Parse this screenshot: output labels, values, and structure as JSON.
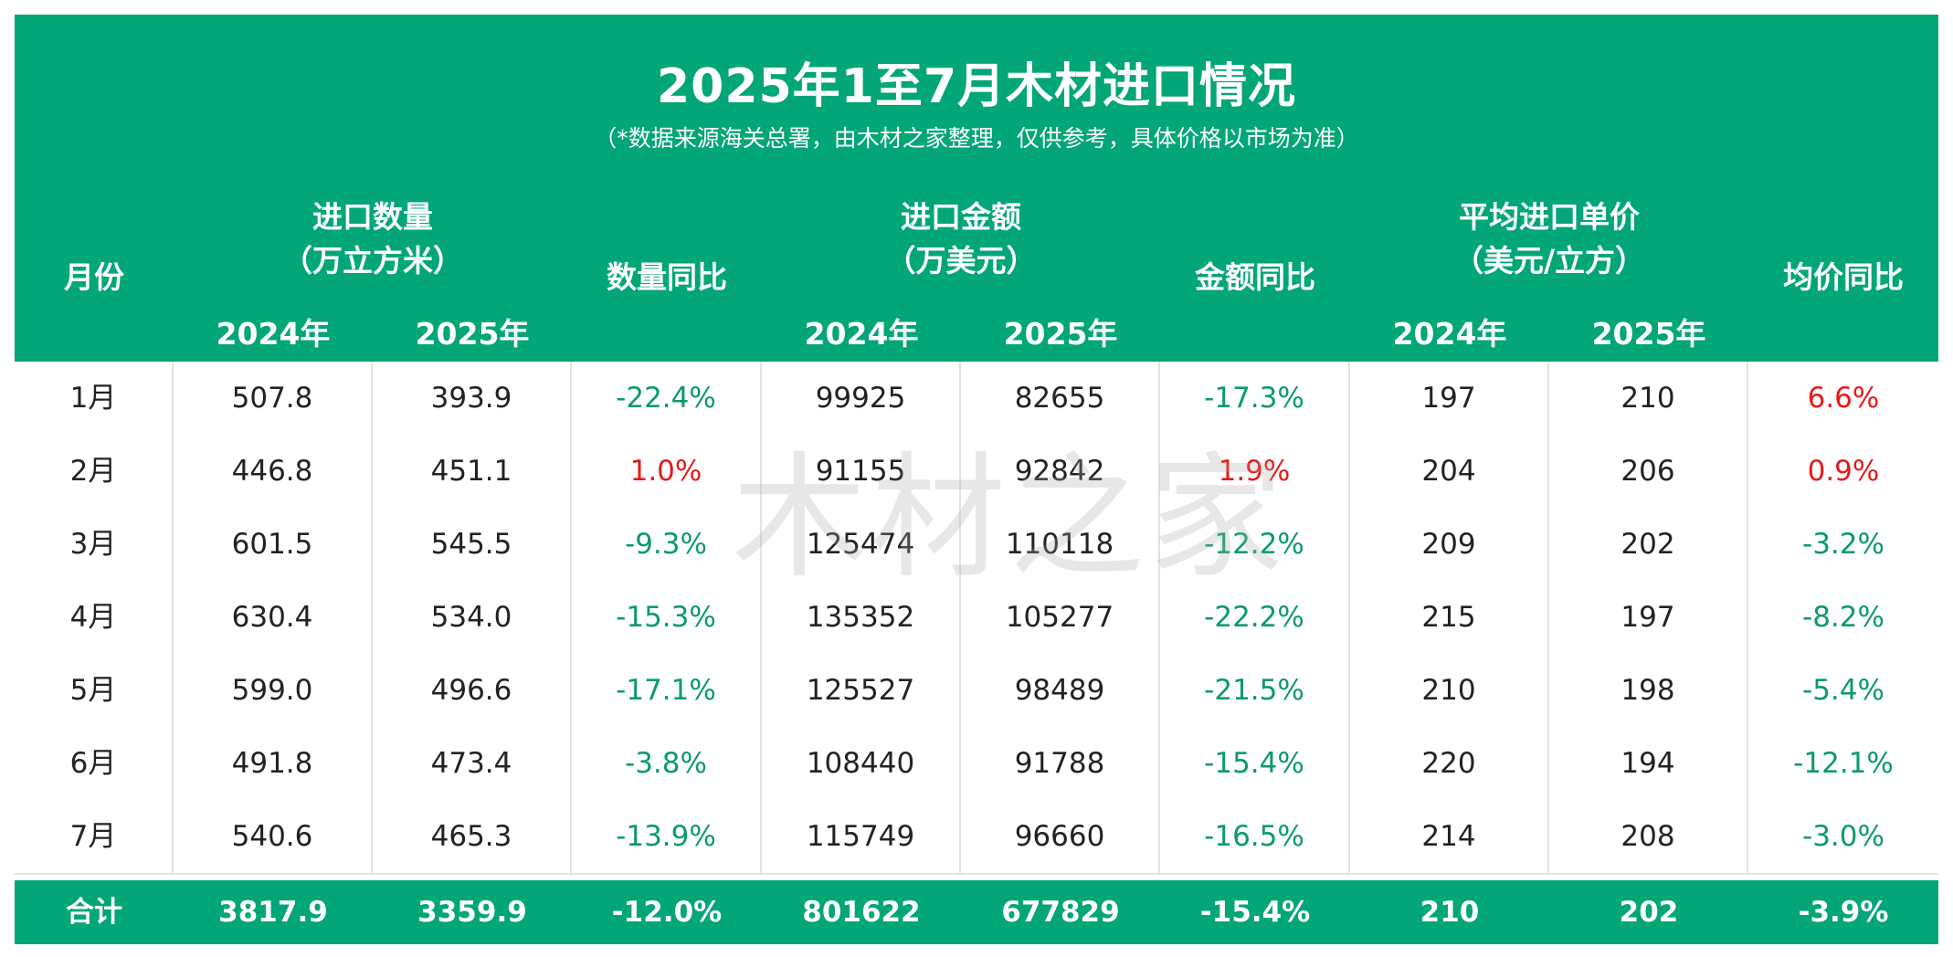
{
  "title": "2025年1至7月木材进口情况",
  "subtitle": "（*数据来源海关总署，由木材之家整理，仅供参考，具体价格以市场为准）",
  "watermark": "木材之家",
  "header": {
    "month": "月份",
    "qty_title": "进口数量",
    "qty_unit": "（万立方米）",
    "qty_yoy": "数量同比",
    "amt_title": "进口金额",
    "amt_unit": "（万美元）",
    "amt_yoy": "金额同比",
    "price_title": "平均进口单价",
    "price_unit": "（美元/立方）",
    "price_yoy": "均价同比",
    "y2024": "2024年",
    "y2025": "2025年"
  },
  "colors": {
    "header_bg": "#02a677",
    "negative": "#0a9a6e",
    "positive": "#e81919"
  },
  "rows": [
    {
      "month": "1月",
      "qty2024": "507.8",
      "qty2025": "393.9",
      "qty_yoy": "-22.4%",
      "amt2024": "99925",
      "amt2025": "82655",
      "amt_yoy": "-17.3%",
      "price2024": "197",
      "price2025": "210",
      "price_yoy": "6.6%"
    },
    {
      "month": "2月",
      "qty2024": "446.8",
      "qty2025": "451.1",
      "qty_yoy": "1.0%",
      "amt2024": "91155",
      "amt2025": "92842",
      "amt_yoy": "1.9%",
      "price2024": "204",
      "price2025": "206",
      "price_yoy": "0.9%"
    },
    {
      "month": "3月",
      "qty2024": "601.5",
      "qty2025": "545.5",
      "qty_yoy": "-9.3%",
      "amt2024": "125474",
      "amt2025": "110118",
      "amt_yoy": "-12.2%",
      "price2024": "209",
      "price2025": "202",
      "price_yoy": "-3.2%"
    },
    {
      "month": "4月",
      "qty2024": "630.4",
      "qty2025": "534.0",
      "qty_yoy": "-15.3%",
      "amt2024": "135352",
      "amt2025": "105277",
      "amt_yoy": "-22.2%",
      "price2024": "215",
      "price2025": "197",
      "price_yoy": "-8.2%"
    },
    {
      "month": "5月",
      "qty2024": "599.0",
      "qty2025": "496.6",
      "qty_yoy": "-17.1%",
      "amt2024": "125527",
      "amt2025": "98489",
      "amt_yoy": "-21.5%",
      "price2024": "210",
      "price2025": "198",
      "price_yoy": "-5.4%"
    },
    {
      "month": "6月",
      "qty2024": "491.8",
      "qty2025": "473.4",
      "qty_yoy": "-3.8%",
      "amt2024": "108440",
      "amt2025": "91788",
      "amt_yoy": "-15.4%",
      "price2024": "220",
      "price2025": "194",
      "price_yoy": "-12.1%"
    },
    {
      "month": "7月",
      "qty2024": "540.6",
      "qty2025": "465.3",
      "qty_yoy": "-13.9%",
      "amt2024": "115749",
      "amt2025": "96660",
      "amt_yoy": "-16.5%",
      "price2024": "214",
      "price2025": "208",
      "price_yoy": "-3.0%"
    }
  ],
  "total": {
    "label": "合计",
    "qty2024": "3817.9",
    "qty2025": "3359.9",
    "qty_yoy": "-12.0%",
    "amt2024": "801622",
    "amt2025": "677829",
    "amt_yoy": "-15.4%",
    "price2024": "210",
    "price2025": "202",
    "price_yoy": "-3.9%"
  }
}
